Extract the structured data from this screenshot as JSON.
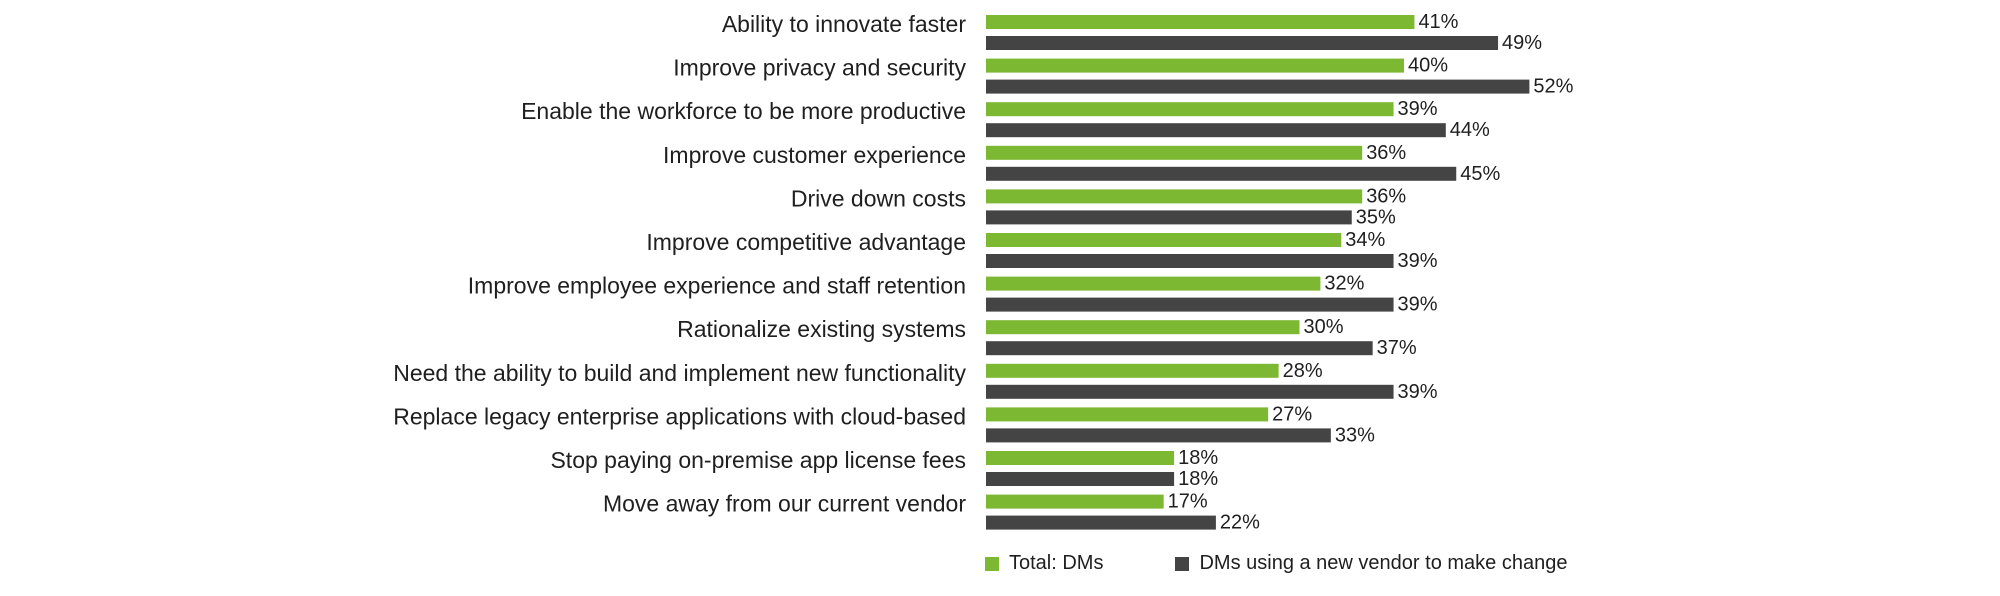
{
  "chart_data": {
    "type": "bar",
    "orientation": "horizontal",
    "categories": [
      "Ability to innovate faster",
      "Improve privacy and security",
      "Enable the workforce to be more productive",
      "Improve customer experience",
      "Drive down costs",
      "Improve competitive advantage",
      "Improve employee experience and staff retention",
      "Rationalize existing systems",
      "Need the ability to build and implement new functionality",
      "Replace legacy enterprise applications with cloud-based",
      "Stop paying on-premise app license fees",
      "Move away from our current vendor"
    ],
    "series": [
      {
        "name": "Total: DMs",
        "color": "#7cb832",
        "values": [
          41,
          40,
          39,
          36,
          36,
          34,
          32,
          30,
          28,
          27,
          18,
          17
        ]
      },
      {
        "name": "DMs using a new vendor to make change",
        "color": "#444444",
        "values": [
          49,
          52,
          44,
          45,
          35,
          39,
          39,
          37,
          39,
          33,
          18,
          22
        ]
      }
    ],
    "value_suffix": "%",
    "xlim": [
      0,
      100
    ],
    "grid": false,
    "legend_position": "bottom"
  }
}
